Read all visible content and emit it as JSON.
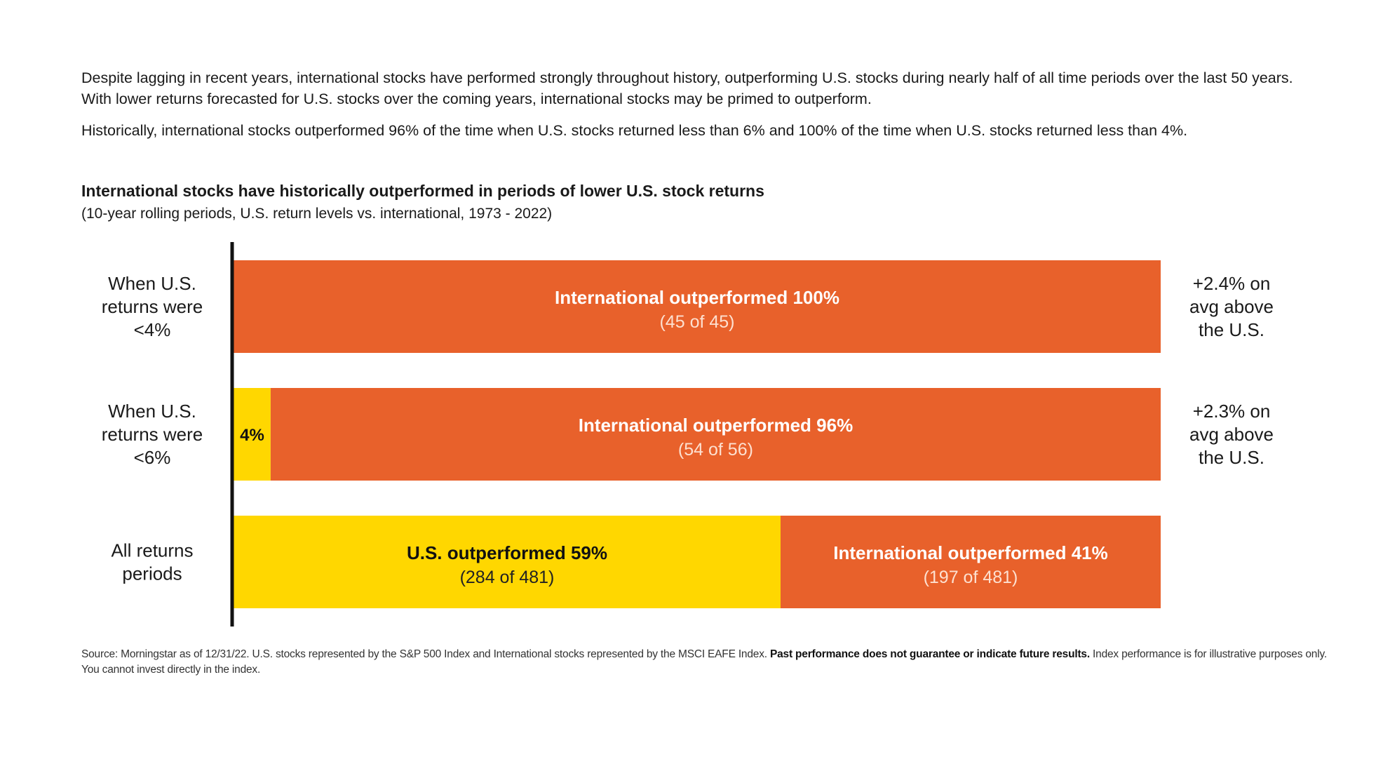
{
  "intro": {
    "p1": "Despite lagging in recent years, international stocks have performed strongly throughout history, outperforming U.S. stocks during nearly half of all time periods over the last 50 years. With lower returns forecasted for U.S. stocks over the coming years, international stocks may be primed to outperform.",
    "p2": "Historically, international stocks outperformed 96% of the time when U.S. stocks returned less than 6% and 100% of the time when U.S. stocks returned less than 4%."
  },
  "source": {
    "text": "Source: Morningstar as of 12/31/22. U.S. stocks represented by the S&P 500 Index and International stocks represented by the MSCI EAFE Index. ",
    "bold": "Past performance does not guarantee or indicate future results.",
    "text2": " Index performance is for illustrative purposes only. You cannot invest directly in the index."
  },
  "colors": {
    "us": "#FFD700",
    "international": "#E8612B",
    "axis": "#111111"
  },
  "chart_data": {
    "type": "bar",
    "stacked": true,
    "orientation": "horizontal",
    "title": "International stocks have historically outperformed in periods of lower U.S. stock returns",
    "subtitle": "(10-year rolling periods, U.S. return levels vs. international, 1973 - 2022)",
    "categories": [
      [
        "When U.S.",
        "returns were",
        "<4%"
      ],
      [
        "When U.S.",
        "returns were",
        "<6%"
      ],
      [
        "All returns",
        "periods"
      ]
    ],
    "xlim": [
      0,
      100
    ],
    "grid": false,
    "series": [
      {
        "key": "us",
        "values": [
          0,
          4,
          59
        ],
        "labels": [
          null,
          {
            "main": "4%",
            "sub": ""
          },
          {
            "main": "U.S. outperformed 59%",
            "sub": "(284 of 481)"
          }
        ]
      },
      {
        "key": "international",
        "values": [
          100,
          96,
          41
        ],
        "labels": [
          {
            "main": "International outperformed 100%",
            "sub": "(45 of 45)"
          },
          {
            "main": "International outperformed 96%",
            "sub": "(54 of 56)"
          },
          {
            "main": "International outperformed 41%",
            "sub": "(197 of 481)"
          }
        ]
      }
    ],
    "annotations": [
      [
        "+2.4% on",
        "avg above",
        "the U.S."
      ],
      [
        "+2.3% on",
        "avg above",
        "the U.S."
      ],
      null
    ]
  }
}
